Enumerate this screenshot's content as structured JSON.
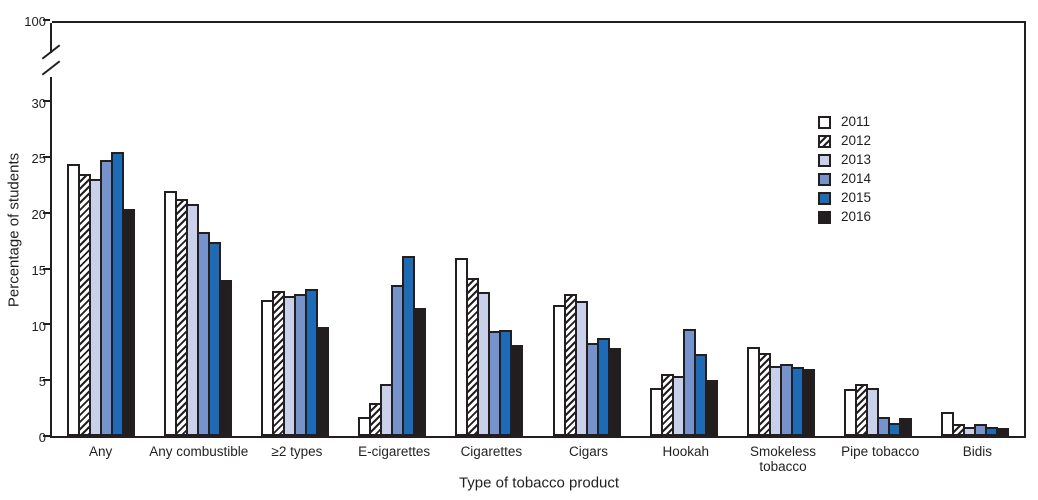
{
  "figure": {
    "xlabel": "Type of tobacco product",
    "ylabel": "Percentage of students"
  },
  "chart_data": {
    "type": "bar",
    "title": "",
    "xlabel": "Type of tobacco product",
    "ylabel": "Percentage of students",
    "categories": [
      "Any",
      "Any combustible",
      "≥2 types",
      "E-cigarettes",
      "Cigarettes",
      "Cigars",
      "Hookah",
      "Smokeless tobacco",
      "Pipe tobacco",
      "Bidis"
    ],
    "category_tick_labels": [
      "Any",
      "Any combustible",
      "≥2 types",
      "E-cigarettes",
      "Cigarettes",
      "Cigars",
      "Hookah",
      "Smokeless\ntobacco",
      "Pipe tobacco",
      "Bidis"
    ],
    "series": [
      {
        "name": "2011",
        "fill": "#ffffff",
        "pattern": "solid",
        "values": [
          24.2,
          21.8,
          12.0,
          1.5,
          15.8,
          11.6,
          4.1,
          7.8,
          4.0,
          2.0
        ]
      },
      {
        "name": "2012",
        "fill": "#ffffff",
        "pattern": "diagonal-hatch",
        "values": [
          23.3,
          21.1,
          12.8,
          2.8,
          14.0,
          12.6,
          5.4,
          7.3,
          4.5,
          0.9
        ]
      },
      {
        "name": "2013",
        "fill": "#c9d1ea",
        "pattern": "solid",
        "values": [
          22.9,
          20.6,
          12.4,
          4.5,
          12.7,
          11.9,
          5.2,
          6.1,
          4.1,
          0.6
        ]
      },
      {
        "name": "2014",
        "fill": "#7693cb",
        "pattern": "solid",
        "values": [
          24.6,
          18.1,
          12.6,
          13.4,
          9.2,
          8.2,
          9.4,
          6.3,
          1.5,
          0.9
        ]
      },
      {
        "name": "2015",
        "fill": "#1e6ab4",
        "pattern": "solid",
        "values": [
          25.3,
          17.2,
          13.0,
          16.0,
          9.3,
          8.6,
          7.2,
          6.0,
          1.0,
          0.6
        ]
      },
      {
        "name": "2016",
        "fill": "#221e1f",
        "pattern": "solid",
        "values": [
          20.2,
          13.8,
          9.6,
          11.3,
          8.0,
          7.7,
          4.8,
          5.8,
          1.4,
          0.5
        ]
      }
    ],
    "y_axis": {
      "ticks": [
        0,
        5,
        10,
        15,
        20,
        25,
        30,
        100
      ],
      "axis_break": {
        "between": [
          30,
          100
        ]
      },
      "units": "percent"
    },
    "legend": {
      "position": "inside-upper-right",
      "entries": [
        "2011",
        "2012",
        "2013",
        "2014",
        "2015",
        "2016"
      ]
    },
    "grid": false,
    "bar_outline_color": "#231f20",
    "hatch_color": "#231f20"
  }
}
